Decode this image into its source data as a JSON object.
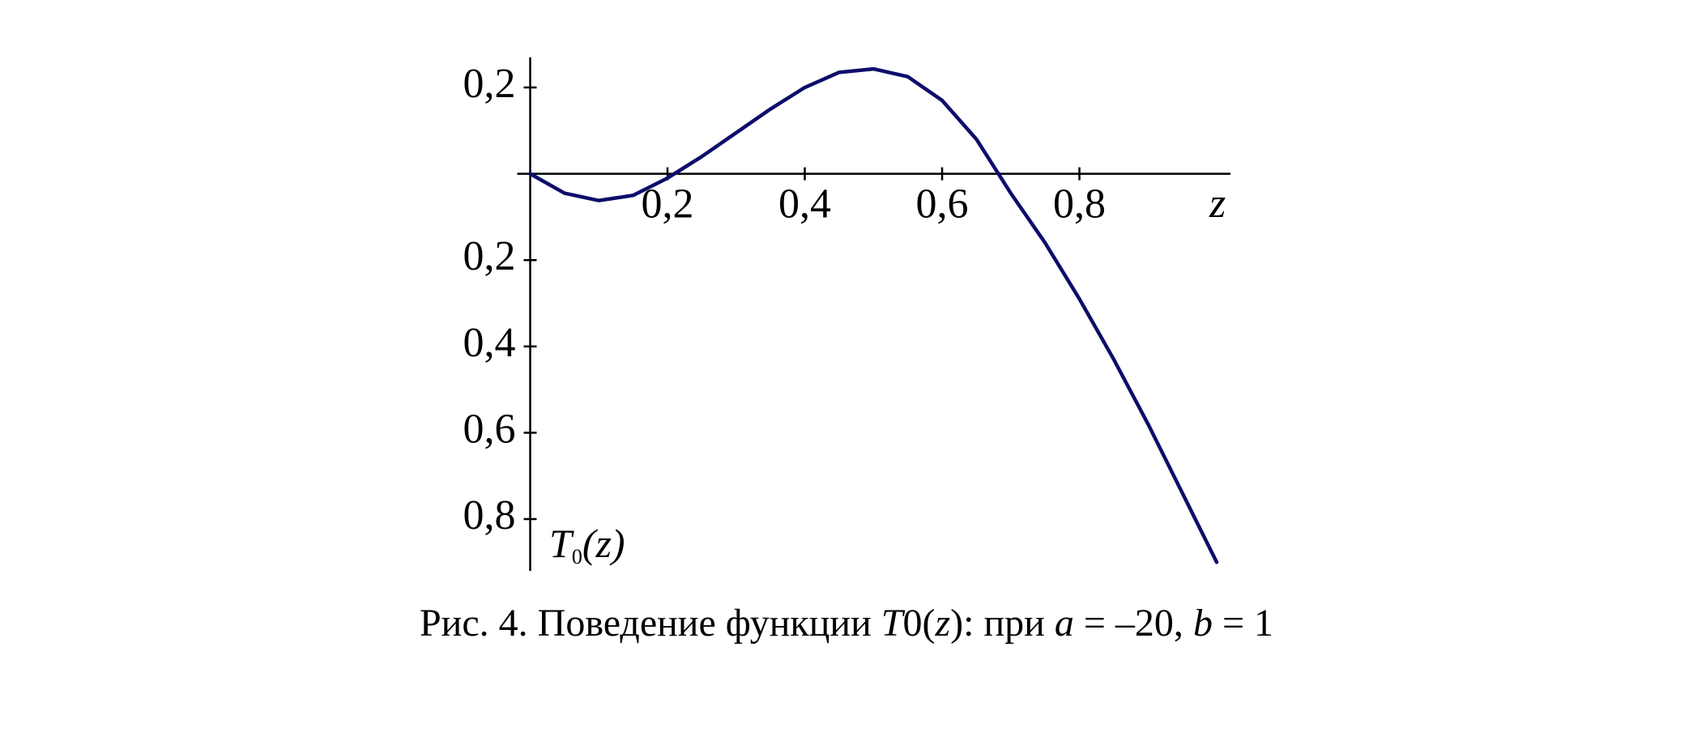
{
  "chart_data": {
    "type": "line",
    "x_label": "z",
    "y_label": [
      "T",
      "0",
      "(z)"
    ],
    "caption": [
      "Рис. 4. Поведение функции ",
      "T",
      "0",
      "(",
      "z",
      "): при ",
      "a",
      " = –20, ",
      "b",
      " = 1"
    ],
    "x": [
      0,
      0.05,
      0.1,
      0.15,
      0.2,
      0.25,
      0.3,
      0.35,
      0.4,
      0.45,
      0.5,
      0.55,
      0.6,
      0.65,
      0.7,
      0.75,
      0.8,
      0.85,
      0.9,
      0.95,
      1.0
    ],
    "series": [
      {
        "color": "#0d0d6b",
        "values": [
          0,
          -0.045,
          -0.062,
          -0.05,
          -0.01,
          0.04,
          0.095,
          0.15,
          0.2,
          0.235,
          0.243,
          0.225,
          0.17,
          0.08,
          -0.045,
          -0.16,
          -0.29,
          -0.43,
          -0.58,
          -0.74,
          -0.9
        ]
      }
    ],
    "xlim": [
      0,
      1.02
    ],
    "ylim": [
      -0.92,
      0.27
    ],
    "xticks": [
      {
        "value": 0.2,
        "label": "0,2"
      },
      {
        "value": 0.4,
        "label": "0,4"
      },
      {
        "value": 0.6,
        "label": "0,6"
      },
      {
        "value": 0.8,
        "label": "0,8"
      }
    ],
    "yticks": [
      {
        "value": 0.2,
        "label": "0,2"
      },
      {
        "value": -0.2,
        "label": "0,2"
      },
      {
        "value": -0.4,
        "label": "0,4"
      },
      {
        "value": -0.6,
        "label": "0,6"
      },
      {
        "value": -0.8,
        "label": "0,8"
      }
    ]
  }
}
